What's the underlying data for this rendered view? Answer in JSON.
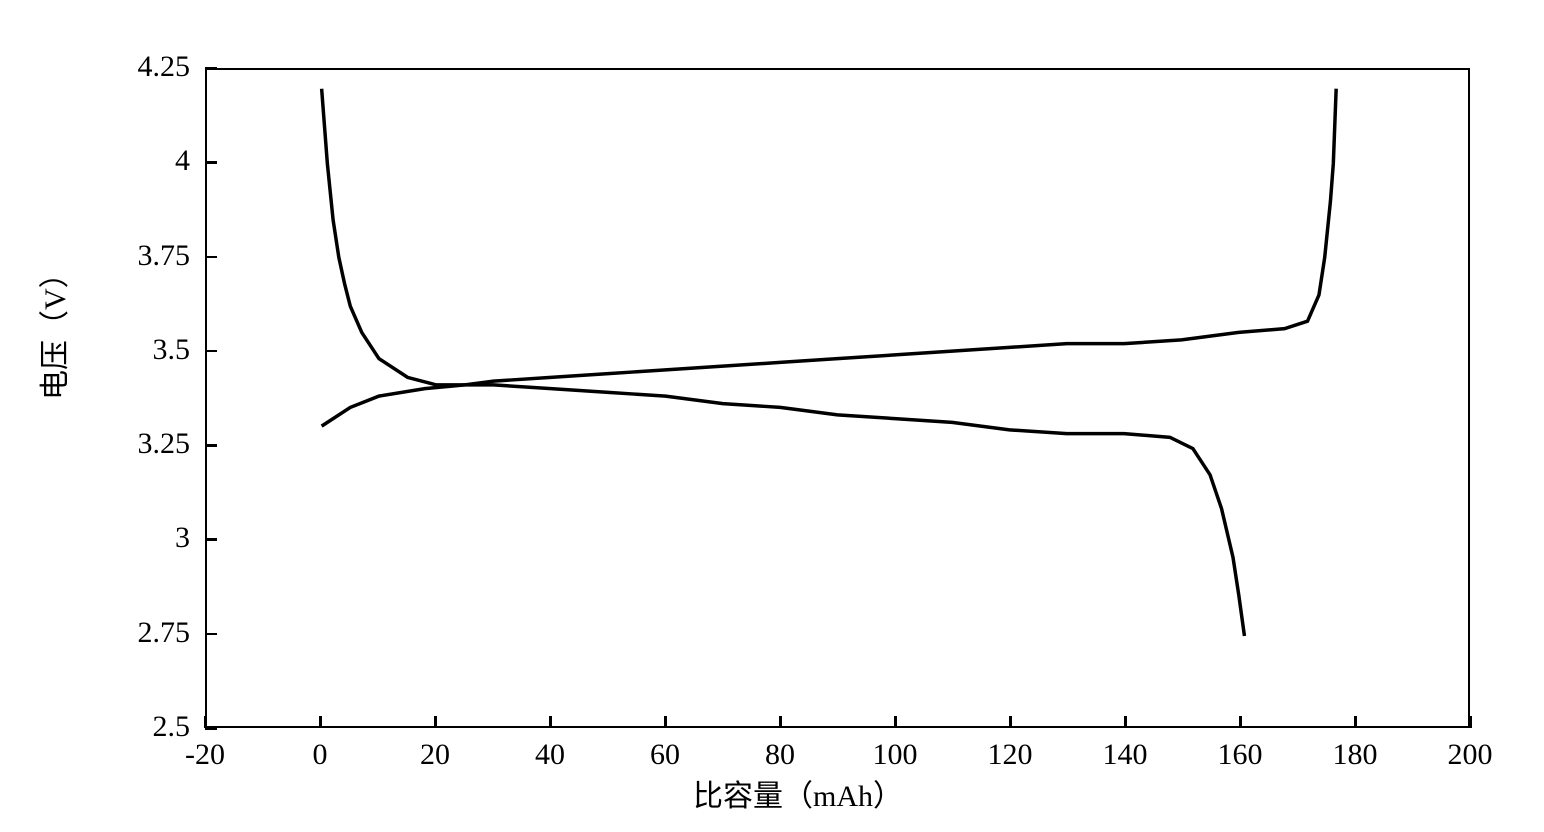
{
  "chart": {
    "type": "line",
    "xlabel": "比容量（mAh）",
    "ylabel": "电压（V）",
    "label_fontsize": 30,
    "tick_fontsize": 30,
    "xlim": [
      -20,
      200
    ],
    "ylim": [
      2.5,
      4.25
    ],
    "xticks": [
      -20,
      0,
      20,
      40,
      60,
      80,
      100,
      120,
      140,
      160,
      180,
      200
    ],
    "yticks": [
      2.5,
      2.75,
      3,
      3.25,
      3.5,
      3.75,
      4,
      4.25
    ],
    "background_color": "#ffffff",
    "border_color": "#000000",
    "line_color": "#000000",
    "line_width": 3.5,
    "charge_curve": [
      {
        "x": 0,
        "y": 4.2
      },
      {
        "x": 1,
        "y": 4.0
      },
      {
        "x": 2,
        "y": 3.85
      },
      {
        "x": 3,
        "y": 3.75
      },
      {
        "x": 4,
        "y": 3.68
      },
      {
        "x": 5,
        "y": 3.62
      },
      {
        "x": 7,
        "y": 3.55
      },
      {
        "x": 10,
        "y": 3.48
      },
      {
        "x": 15,
        "y": 3.43
      },
      {
        "x": 20,
        "y": 3.41
      },
      {
        "x": 25,
        "y": 3.41
      },
      {
        "x": 30,
        "y": 3.42
      },
      {
        "x": 40,
        "y": 3.43
      },
      {
        "x": 50,
        "y": 3.44
      },
      {
        "x": 60,
        "y": 3.45
      },
      {
        "x": 70,
        "y": 3.46
      },
      {
        "x": 80,
        "y": 3.47
      },
      {
        "x": 90,
        "y": 3.48
      },
      {
        "x": 100,
        "y": 3.49
      },
      {
        "x": 110,
        "y": 3.5
      },
      {
        "x": 120,
        "y": 3.51
      },
      {
        "x": 130,
        "y": 3.52
      },
      {
        "x": 140,
        "y": 3.52
      },
      {
        "x": 150,
        "y": 3.53
      },
      {
        "x": 160,
        "y": 3.55
      },
      {
        "x": 168,
        "y": 3.56
      },
      {
        "x": 172,
        "y": 3.58
      },
      {
        "x": 174,
        "y": 3.65
      },
      {
        "x": 175,
        "y": 3.75
      },
      {
        "x": 176,
        "y": 3.9
      },
      {
        "x": 176.5,
        "y": 4.0
      },
      {
        "x": 177,
        "y": 4.2
      }
    ],
    "discharge_curve": [
      {
        "x": 0,
        "y": 3.3
      },
      {
        "x": 5,
        "y": 3.35
      },
      {
        "x": 10,
        "y": 3.38
      },
      {
        "x": 18,
        "y": 3.4
      },
      {
        "x": 25,
        "y": 3.41
      },
      {
        "x": 30,
        "y": 3.41
      },
      {
        "x": 40,
        "y": 3.4
      },
      {
        "x": 50,
        "y": 3.39
      },
      {
        "x": 60,
        "y": 3.38
      },
      {
        "x": 70,
        "y": 3.36
      },
      {
        "x": 80,
        "y": 3.35
      },
      {
        "x": 90,
        "y": 3.33
      },
      {
        "x": 100,
        "y": 3.32
      },
      {
        "x": 110,
        "y": 3.31
      },
      {
        "x": 120,
        "y": 3.29
      },
      {
        "x": 130,
        "y": 3.28
      },
      {
        "x": 140,
        "y": 3.28
      },
      {
        "x": 148,
        "y": 3.27
      },
      {
        "x": 152,
        "y": 3.24
      },
      {
        "x": 155,
        "y": 3.17
      },
      {
        "x": 157,
        "y": 3.08
      },
      {
        "x": 159,
        "y": 2.95
      },
      {
        "x": 160,
        "y": 2.85
      },
      {
        "x": 161,
        "y": 2.74
      }
    ]
  }
}
